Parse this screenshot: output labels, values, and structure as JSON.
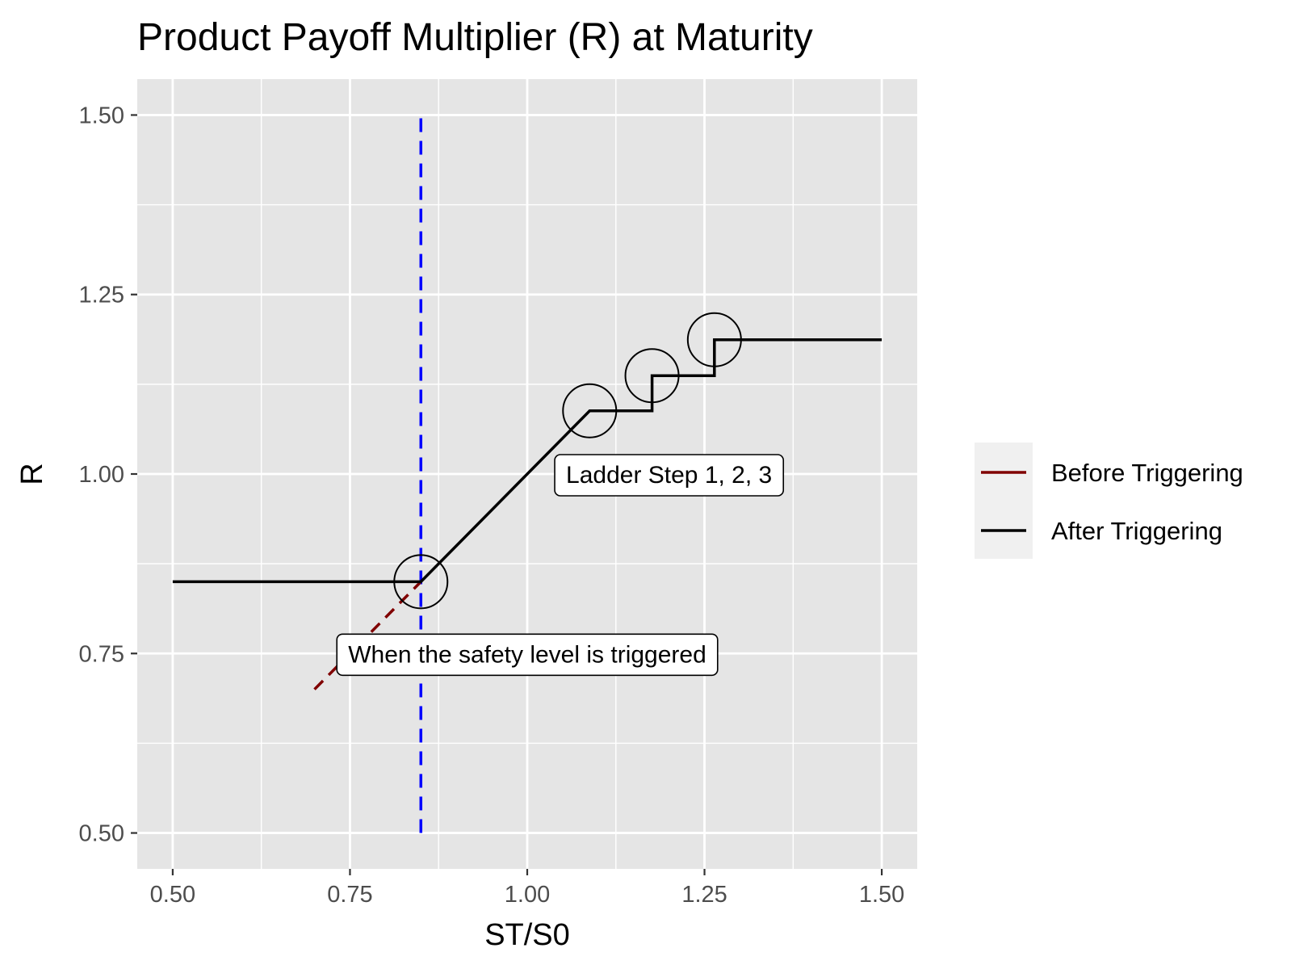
{
  "chart_data": {
    "type": "line",
    "title": "Product Payoff Multiplier (R) at Maturity",
    "xlabel": "ST/S0",
    "ylabel": "R",
    "xlim": [
      0.45,
      1.55
    ],
    "ylim": [
      0.45,
      1.55
    ],
    "x_ticks": [
      0.5,
      0.75,
      1.0,
      1.25,
      1.5
    ],
    "x_tick_labels": [
      "0.50",
      "0.75",
      "1.00",
      "1.25",
      "1.50"
    ],
    "y_ticks": [
      0.5,
      0.75,
      1.0,
      1.25,
      1.5
    ],
    "y_tick_labels": [
      "0.50",
      "0.75",
      "1.00",
      "1.25",
      "1.50"
    ],
    "grid": true,
    "legend_position": "right",
    "series": [
      {
        "name": "Before Triggering",
        "color": "#800000",
        "dash": "dashed",
        "x": [
          0.7,
          0.85
        ],
        "y": [
          0.7,
          0.85
        ]
      },
      {
        "name": "After Triggering",
        "color": "#000000",
        "dash": "solid",
        "x": [
          0.5,
          0.85,
          1.088,
          1.176,
          1.176,
          1.264,
          1.264,
          1.5
        ],
        "y": [
          0.85,
          0.85,
          1.088,
          1.088,
          1.137,
          1.137,
          1.187,
          1.187
        ]
      }
    ],
    "reference_lines": [
      {
        "type": "vertical",
        "x": 0.85,
        "y_range": [
          0.5,
          1.5
        ],
        "color": "#0000ff",
        "dash": "dashed"
      }
    ],
    "markers": [
      {
        "shape": "open-circle",
        "x": 0.85,
        "y": 0.85
      },
      {
        "shape": "open-circle",
        "x": 1.088,
        "y": 1.088
      },
      {
        "shape": "open-circle",
        "x": 1.176,
        "y": 1.137
      },
      {
        "shape": "open-circle",
        "x": 1.264,
        "y": 1.187
      }
    ],
    "annotations": [
      {
        "text": "Ladder Step 1, 2, 3",
        "x": 1.2,
        "y": 1.0
      },
      {
        "text": "When the safety level is triggered",
        "x": 1.0,
        "y": 0.75
      }
    ]
  },
  "colors": {
    "panel_background": "#e5e5e5",
    "grid": "#ffffff",
    "legend_background": "#f0f0f0"
  }
}
